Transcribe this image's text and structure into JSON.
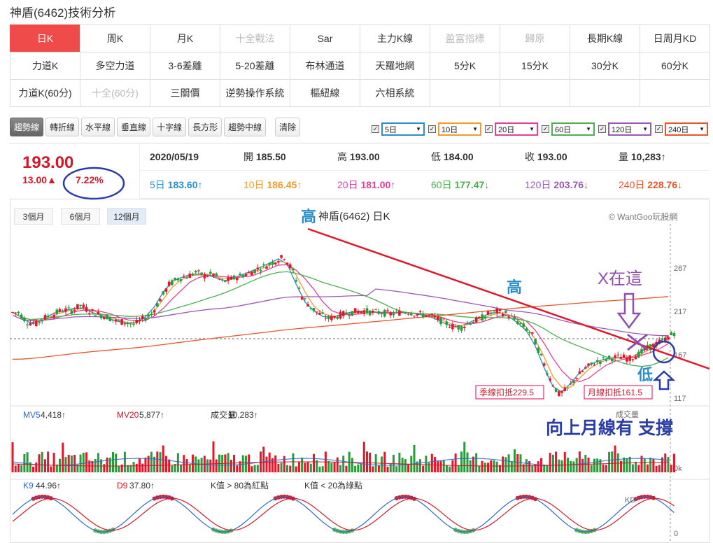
{
  "page": {
    "title": "神盾(6462)技術分析"
  },
  "menu": [
    {
      "label": "日K",
      "state": "active"
    },
    {
      "label": "周K",
      "state": ""
    },
    {
      "label": "月K",
      "state": ""
    },
    {
      "label": "十全戰法",
      "state": "disabled"
    },
    {
      "label": "Sar",
      "state": ""
    },
    {
      "label": "主力K線",
      "state": ""
    },
    {
      "label": "盈富指標",
      "state": "disabled"
    },
    {
      "label": "歸原",
      "state": "disabled"
    },
    {
      "label": "長期K線",
      "state": ""
    },
    {
      "label": "日周月KD",
      "state": ""
    },
    {
      "label": "力道K",
      "state": ""
    },
    {
      "label": "多空力道",
      "state": ""
    },
    {
      "label": "3-6差離",
      "state": ""
    },
    {
      "label": "5-20差離",
      "state": ""
    },
    {
      "label": "布林通道",
      "state": ""
    },
    {
      "label": "天羅地網",
      "state": ""
    },
    {
      "label": "5分K",
      "state": ""
    },
    {
      "label": "15分K",
      "state": ""
    },
    {
      "label": "30分K",
      "state": ""
    },
    {
      "label": "60分K",
      "state": ""
    },
    {
      "label": "力道K(60分)",
      "state": ""
    },
    {
      "label": "十全(60分)",
      "state": "disabled"
    },
    {
      "label": "三關價",
      "state": ""
    },
    {
      "label": "逆勢操作系統",
      "state": ""
    },
    {
      "label": "樞紐線",
      "state": ""
    },
    {
      "label": "六相系統",
      "state": ""
    },
    {
      "label": "",
      "state": "empty"
    },
    {
      "label": "",
      "state": "empty"
    },
    {
      "label": "",
      "state": "empty"
    },
    {
      "label": "",
      "state": "empty"
    }
  ],
  "tools": [
    {
      "label": "趨勢線",
      "active": true
    },
    {
      "label": "轉折線"
    },
    {
      "label": "水平線"
    },
    {
      "label": "垂直線"
    },
    {
      "label": "十字線"
    },
    {
      "label": "長方形"
    },
    {
      "label": "趨勢中線"
    },
    {
      "label": "清除",
      "gap": true
    }
  ],
  "ma_selects": [
    {
      "label": "5日",
      "color": "#2a8fc9"
    },
    {
      "label": "10日",
      "color": "#f39a2b"
    },
    {
      "label": "20日",
      "color": "#e0409b"
    },
    {
      "label": "60日",
      "color": "#4caf50"
    },
    {
      "label": "120日",
      "color": "#9b59b6"
    },
    {
      "label": "240日",
      "color": "#e8552b"
    }
  ],
  "quote": {
    "price": "193.00",
    "change": "13.00▲",
    "change_pct": "7.22%",
    "row1": [
      {
        "label": "",
        "value": "2020/05/19"
      },
      {
        "label": "開",
        "value": "185.50"
      },
      {
        "label": "高",
        "value": "193.00"
      },
      {
        "label": "低",
        "value": "184.00"
      },
      {
        "label": "收",
        "value": "193.00"
      },
      {
        "label": "量",
        "value": "10,283↑"
      }
    ],
    "row2": [
      {
        "label": "5日",
        "value": "183.60↑",
        "color": "#2a8fc9"
      },
      {
        "label": "10日",
        "value": "186.45↑",
        "color": "#f39a2b"
      },
      {
        "label": "20日",
        "value": "181.00↑",
        "color": "#e0409b"
      },
      {
        "label": "60日",
        "value": "177.47↓",
        "color": "#4caf50"
      },
      {
        "label": "120日",
        "value": "203.76↓",
        "color": "#9b59b6"
      },
      {
        "label": "240日",
        "value": "228.76↓",
        "color": "#e8552b"
      }
    ]
  },
  "ranges": [
    {
      "label": "3個月"
    },
    {
      "label": "6個月"
    },
    {
      "label": "12個月",
      "active": true
    }
  ],
  "chart": {
    "title": "神盾(6462) 日K",
    "credit": "© WantGoo玩股網",
    "price_axis": [
      "267",
      "217",
      "167",
      "117"
    ],
    "vol_axis": [
      "成交量",
      "0k"
    ],
    "kd_axis": [
      "KD",
      "0"
    ],
    "labels": {
      "quarter_line": "季線扣抵229.5",
      "month_line": "月線扣抵161.5"
    },
    "volume_legend": [
      {
        "label": "MV5",
        "value": "4,418↑",
        "color": "#2a6cc9"
      },
      {
        "label": "MV20",
        "value": "5,877↑",
        "color": "#d3182a"
      },
      {
        "label": "成交量",
        "value": "10,283↑",
        "color": "#333"
      }
    ],
    "kd_legend": [
      {
        "label": "K9",
        "value": "44.96↑",
        "color": "#2a6cc9"
      },
      {
        "label": "D9",
        "value": "37.80↑",
        "color": "#d3182a"
      },
      {
        "label": "K值 > 80為紅點",
        "value": "",
        "color": "#333"
      },
      {
        "label": "K值 < 20為綠點",
        "value": "",
        "color": "#333"
      }
    ],
    "annotations": {
      "high1": "高",
      "high2": "高",
      "low": "低",
      "x_here": "X在這",
      "support": "向上月線有 支撐"
    }
  },
  "chart_data": {
    "type": "candlestick",
    "title": "神盾(6462) 日K",
    "ylim": [
      100,
      300
    ],
    "price_ticks": [
      117,
      167,
      217,
      267
    ],
    "current_price": 193.0,
    "ohlc_last": {
      "date": "2020/05/19",
      "open": 185.5,
      "high": 193.0,
      "low": 184.0,
      "close": 193.0,
      "volume": 10283
    },
    "close_path": [
      216,
      205,
      203,
      210,
      214,
      219,
      218,
      224,
      218,
      214,
      211,
      206,
      205,
      202,
      208,
      214,
      231,
      248,
      255,
      257,
      262,
      258,
      260,
      251,
      254,
      258,
      261,
      266,
      270,
      275,
      280,
      263,
      234,
      222,
      214,
      209,
      212,
      215,
      217,
      218,
      216,
      216,
      214,
      216,
      217,
      214,
      213,
      210,
      205,
      200,
      199,
      205,
      208,
      214,
      217,
      215,
      208,
      200,
      190,
      165,
      140,
      122,
      128,
      142,
      152,
      158,
      162,
      164,
      165,
      163,
      168,
      175,
      180,
      185,
      193
    ],
    "ma_series": [
      {
        "name": "5日",
        "last": 183.6,
        "color": "#2a8fc9"
      },
      {
        "name": "10日",
        "last": 186.45,
        "color": "#f39a2b"
      },
      {
        "name": "20日",
        "last": 181.0,
        "color": "#e0409b"
      },
      {
        "name": "60日",
        "last": 177.47,
        "color": "#4caf50"
      },
      {
        "name": "120日",
        "last": 203.76,
        "color": "#9b59b6"
      },
      {
        "name": "240日",
        "last": 228.76,
        "color": "#e8552b"
      }
    ],
    "volume": {
      "MV5": 4418,
      "MV20": 5877,
      "last": 10283
    },
    "kd": {
      "K9": 44.96,
      "D9": 37.8
    }
  }
}
